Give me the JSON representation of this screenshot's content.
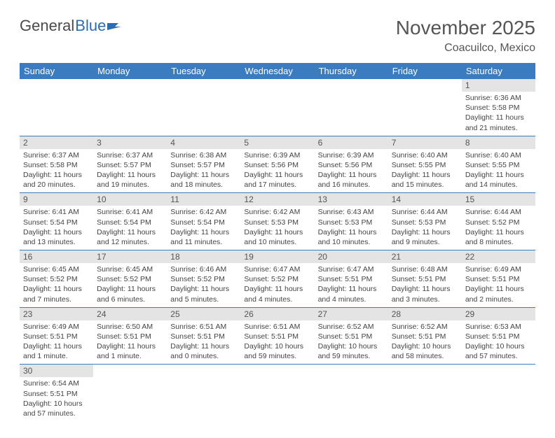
{
  "brand": {
    "part1": "General",
    "part2": "Blue"
  },
  "title": "November 2025",
  "location": "Coacuilco, Mexico",
  "colors": {
    "header_bg": "#3b7bbf",
    "header_fg": "#ffffff",
    "daynum_bg": "#e4e4e4",
    "border": "#3b7bbf",
    "brand_blue": "#2a6db0",
    "text": "#444444"
  },
  "weekdays": [
    "Sunday",
    "Monday",
    "Tuesday",
    "Wednesday",
    "Thursday",
    "Friday",
    "Saturday"
  ],
  "weeks": [
    [
      null,
      null,
      null,
      null,
      null,
      null,
      {
        "n": "1",
        "sunrise": "Sunrise: 6:36 AM",
        "sunset": "Sunset: 5:58 PM",
        "daylight": "Daylight: 11 hours and 21 minutes."
      }
    ],
    [
      {
        "n": "2",
        "sunrise": "Sunrise: 6:37 AM",
        "sunset": "Sunset: 5:58 PM",
        "daylight": "Daylight: 11 hours and 20 minutes."
      },
      {
        "n": "3",
        "sunrise": "Sunrise: 6:37 AM",
        "sunset": "Sunset: 5:57 PM",
        "daylight": "Daylight: 11 hours and 19 minutes."
      },
      {
        "n": "4",
        "sunrise": "Sunrise: 6:38 AM",
        "sunset": "Sunset: 5:57 PM",
        "daylight": "Daylight: 11 hours and 18 minutes."
      },
      {
        "n": "5",
        "sunrise": "Sunrise: 6:39 AM",
        "sunset": "Sunset: 5:56 PM",
        "daylight": "Daylight: 11 hours and 17 minutes."
      },
      {
        "n": "6",
        "sunrise": "Sunrise: 6:39 AM",
        "sunset": "Sunset: 5:56 PM",
        "daylight": "Daylight: 11 hours and 16 minutes."
      },
      {
        "n": "7",
        "sunrise": "Sunrise: 6:40 AM",
        "sunset": "Sunset: 5:55 PM",
        "daylight": "Daylight: 11 hours and 15 minutes."
      },
      {
        "n": "8",
        "sunrise": "Sunrise: 6:40 AM",
        "sunset": "Sunset: 5:55 PM",
        "daylight": "Daylight: 11 hours and 14 minutes."
      }
    ],
    [
      {
        "n": "9",
        "sunrise": "Sunrise: 6:41 AM",
        "sunset": "Sunset: 5:54 PM",
        "daylight": "Daylight: 11 hours and 13 minutes."
      },
      {
        "n": "10",
        "sunrise": "Sunrise: 6:41 AM",
        "sunset": "Sunset: 5:54 PM",
        "daylight": "Daylight: 11 hours and 12 minutes."
      },
      {
        "n": "11",
        "sunrise": "Sunrise: 6:42 AM",
        "sunset": "Sunset: 5:54 PM",
        "daylight": "Daylight: 11 hours and 11 minutes."
      },
      {
        "n": "12",
        "sunrise": "Sunrise: 6:42 AM",
        "sunset": "Sunset: 5:53 PM",
        "daylight": "Daylight: 11 hours and 10 minutes."
      },
      {
        "n": "13",
        "sunrise": "Sunrise: 6:43 AM",
        "sunset": "Sunset: 5:53 PM",
        "daylight": "Daylight: 11 hours and 10 minutes."
      },
      {
        "n": "14",
        "sunrise": "Sunrise: 6:44 AM",
        "sunset": "Sunset: 5:53 PM",
        "daylight": "Daylight: 11 hours and 9 minutes."
      },
      {
        "n": "15",
        "sunrise": "Sunrise: 6:44 AM",
        "sunset": "Sunset: 5:52 PM",
        "daylight": "Daylight: 11 hours and 8 minutes."
      }
    ],
    [
      {
        "n": "16",
        "sunrise": "Sunrise: 6:45 AM",
        "sunset": "Sunset: 5:52 PM",
        "daylight": "Daylight: 11 hours and 7 minutes."
      },
      {
        "n": "17",
        "sunrise": "Sunrise: 6:45 AM",
        "sunset": "Sunset: 5:52 PM",
        "daylight": "Daylight: 11 hours and 6 minutes."
      },
      {
        "n": "18",
        "sunrise": "Sunrise: 6:46 AM",
        "sunset": "Sunset: 5:52 PM",
        "daylight": "Daylight: 11 hours and 5 minutes."
      },
      {
        "n": "19",
        "sunrise": "Sunrise: 6:47 AM",
        "sunset": "Sunset: 5:52 PM",
        "daylight": "Daylight: 11 hours and 4 minutes."
      },
      {
        "n": "20",
        "sunrise": "Sunrise: 6:47 AM",
        "sunset": "Sunset: 5:51 PM",
        "daylight": "Daylight: 11 hours and 4 minutes."
      },
      {
        "n": "21",
        "sunrise": "Sunrise: 6:48 AM",
        "sunset": "Sunset: 5:51 PM",
        "daylight": "Daylight: 11 hours and 3 minutes."
      },
      {
        "n": "22",
        "sunrise": "Sunrise: 6:49 AM",
        "sunset": "Sunset: 5:51 PM",
        "daylight": "Daylight: 11 hours and 2 minutes."
      }
    ],
    [
      {
        "n": "23",
        "sunrise": "Sunrise: 6:49 AM",
        "sunset": "Sunset: 5:51 PM",
        "daylight": "Daylight: 11 hours and 1 minute."
      },
      {
        "n": "24",
        "sunrise": "Sunrise: 6:50 AM",
        "sunset": "Sunset: 5:51 PM",
        "daylight": "Daylight: 11 hours and 1 minute."
      },
      {
        "n": "25",
        "sunrise": "Sunrise: 6:51 AM",
        "sunset": "Sunset: 5:51 PM",
        "daylight": "Daylight: 11 hours and 0 minutes."
      },
      {
        "n": "26",
        "sunrise": "Sunrise: 6:51 AM",
        "sunset": "Sunset: 5:51 PM",
        "daylight": "Daylight: 10 hours and 59 minutes."
      },
      {
        "n": "27",
        "sunrise": "Sunrise: 6:52 AM",
        "sunset": "Sunset: 5:51 PM",
        "daylight": "Daylight: 10 hours and 59 minutes."
      },
      {
        "n": "28",
        "sunrise": "Sunrise: 6:52 AM",
        "sunset": "Sunset: 5:51 PM",
        "daylight": "Daylight: 10 hours and 58 minutes."
      },
      {
        "n": "29",
        "sunrise": "Sunrise: 6:53 AM",
        "sunset": "Sunset: 5:51 PM",
        "daylight": "Daylight: 10 hours and 57 minutes."
      }
    ],
    [
      {
        "n": "30",
        "sunrise": "Sunrise: 6:54 AM",
        "sunset": "Sunset: 5:51 PM",
        "daylight": "Daylight: 10 hours and 57 minutes."
      },
      null,
      null,
      null,
      null,
      null,
      null
    ]
  ]
}
